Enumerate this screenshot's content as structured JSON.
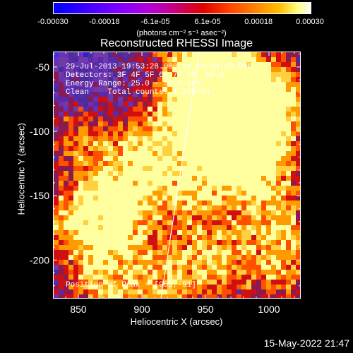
{
  "colorbar": {
    "ticks": [
      "-0.00030",
      "-0.00018",
      "-6.1e-05",
      "6.1e-05",
      "0.00018",
      "0.00030"
    ],
    "units": "(photons cm⁻² s⁻¹ asec⁻²)"
  },
  "title": "Reconstructed RHESSI Image",
  "annotations": {
    "time": "29-Jul-2013 19:53:28.000 to 19:59:28.000",
    "detectors": "Detectors: 3F 4F 5F 6F 7F 8F, AH.0",
    "energy": "Energy Range: 25.0 - 50.0 keV",
    "method": "Clean    Total counts: 1.24E+04",
    "peak": "Position of Peak = [965,-91]"
  },
  "footer": {
    "datetime": "15-May-2022 21:47"
  },
  "chart_data": {
    "type": "heatmap",
    "title": "Reconstructed RHESSI Image",
    "xlabel": "Heliocentric X (arcsec)",
    "ylabel": "Heliocentric Y (arcsec)",
    "xlim": [
      830,
      1025
    ],
    "ylim": [
      -230,
      -38
    ],
    "x_ticks": [
      850,
      900,
      950,
      1000
    ],
    "y_ticks": [
      -50,
      -100,
      -150,
      -200
    ],
    "x_tick_labels": [
      "850",
      "900",
      "950",
      "1000"
    ],
    "y_tick_labels": [
      "-50",
      "-100",
      "-150",
      "-200"
    ],
    "color_range": [
      -0.0003,
      0.0003
    ],
    "colorbar_ticks": [
      -0.0003,
      -0.00018,
      -6.1e-05,
      6.1e-05,
      0.00018,
      0.0003
    ],
    "peak_position": [
      965,
      -91
    ],
    "limb_line": [
      [
        945,
        -38
      ],
      [
        915,
        -230
      ]
    ],
    "blobs": [
      {
        "x": 965,
        "y": -95,
        "level": 1.0
      },
      {
        "x": 948,
        "y": -55,
        "level": 0.85
      },
      {
        "x": 985,
        "y": -110,
        "level": 0.7
      },
      {
        "x": 1000,
        "y": -70,
        "level": 0.55
      },
      {
        "x": 890,
        "y": -140,
        "level": 0.6
      },
      {
        "x": 840,
        "y": -170,
        "level": 0.5
      },
      {
        "x": 875,
        "y": -170,
        "level": 0.55
      },
      {
        "x": 870,
        "y": -220,
        "level": 0.6
      },
      {
        "x": 920,
        "y": -215,
        "level": 0.55
      },
      {
        "x": 960,
        "y": -200,
        "level": 0.5
      },
      {
        "x": 1005,
        "y": -165,
        "level": 0.55
      },
      {
        "x": 940,
        "y": -150,
        "level": 0.45
      },
      {
        "x": 1010,
        "y": -210,
        "level": 0.5
      },
      {
        "x": 850,
        "y": -105,
        "level": 0.45
      },
      {
        "x": 905,
        "y": -105,
        "level": 0.4
      }
    ]
  }
}
